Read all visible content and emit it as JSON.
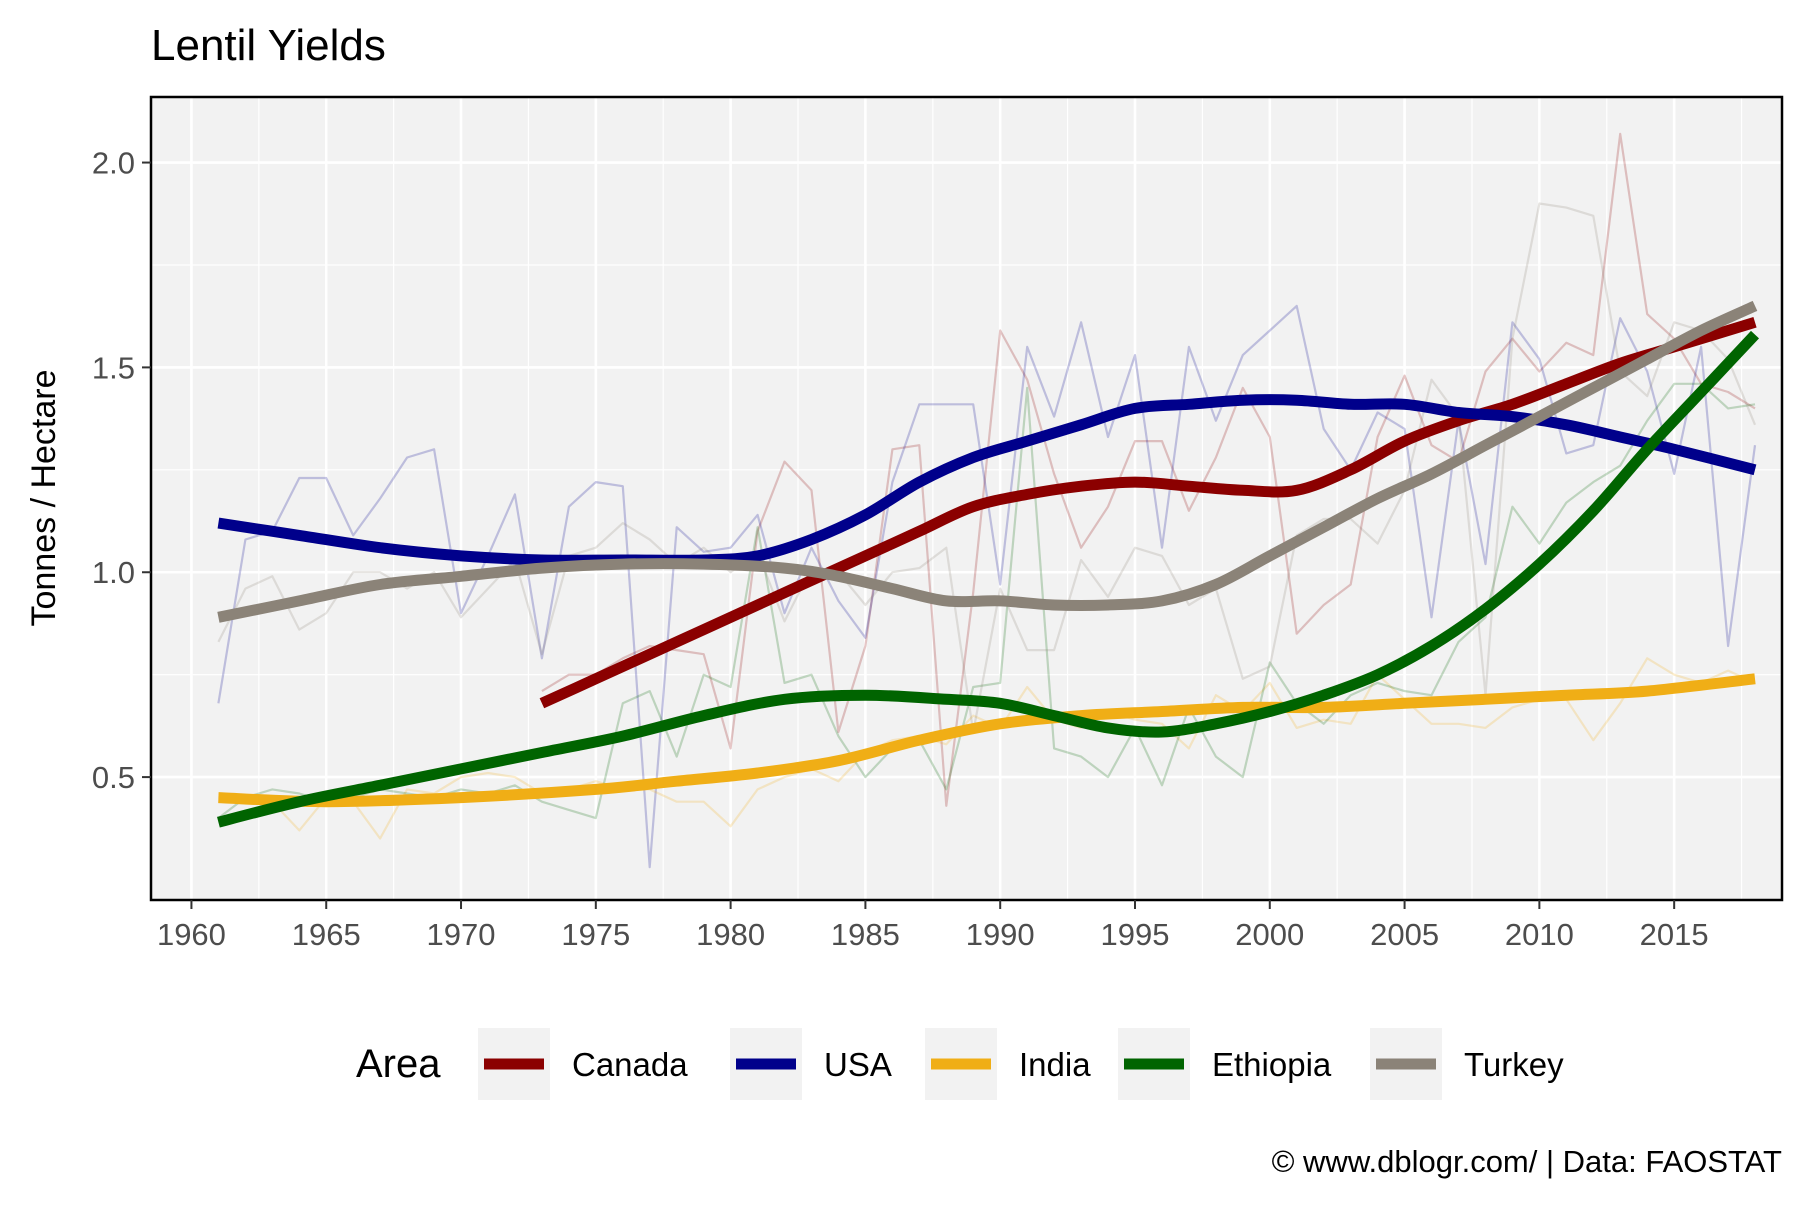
{
  "title": "Lentil Yields",
  "caption": "© www.dblogr.com/  |  Data: FAOSTAT",
  "colors": {
    "panel_bg": "#f2f2f2",
    "grid": "#ffffff",
    "axis_text": "#4d4d4d",
    "Canada": "#8b0000",
    "USA": "#00008b",
    "India": "#f0ae16",
    "Ethiopia": "#006400",
    "Turkey": "#8b8378"
  },
  "chart_data": {
    "type": "line",
    "title": "Lentil Yields",
    "xlabel": "",
    "ylabel": "Tonnes / Hectare",
    "xlim": [
      1958.5,
      2019
    ],
    "ylim": [
      0.2,
      2.16
    ],
    "x_ticks": [
      "1960",
      "1965",
      "1970",
      "1975",
      "1980",
      "1985",
      "1990",
      "1995",
      "2000",
      "2005",
      "2010",
      "2015"
    ],
    "y_ticks": [
      "0.5",
      "1.0",
      "1.5",
      "2.0"
    ],
    "grid": true,
    "legend": {
      "title": "Area",
      "position": "bottom"
    },
    "series_raw": [
      {
        "name": "Canada",
        "x": [
          1973,
          1974,
          1975,
          1976,
          1977,
          1978,
          1979,
          1980,
          1981,
          1982,
          1983,
          1984,
          1985,
          1986,
          1987,
          1988,
          1989,
          1990,
          1991,
          1992,
          1993,
          1994,
          1995,
          1996,
          1997,
          1998,
          1999,
          2000,
          2001,
          2002,
          2003,
          2004,
          2005,
          2006,
          2007,
          2008,
          2009,
          2010,
          2011,
          2012,
          2013,
          2014,
          2015,
          2016,
          2017,
          2018
        ],
        "y": [
          0.71,
          0.75,
          0.75,
          0.79,
          0.82,
          0.81,
          0.8,
          0.57,
          1.1,
          1.27,
          1.2,
          0.61,
          0.82,
          1.3,
          1.31,
          0.43,
          0.95,
          1.59,
          1.47,
          1.24,
          1.06,
          1.16,
          1.32,
          1.32,
          1.15,
          1.28,
          1.45,
          1.33,
          0.85,
          0.92,
          0.97,
          1.33,
          1.48,
          1.31,
          1.27,
          1.49,
          1.57,
          1.49,
          1.56,
          1.53,
          2.07,
          1.63,
          1.57,
          1.46,
          1.44,
          1.4
        ]
      },
      {
        "name": "USA",
        "x": [
          1961,
          1962,
          1963,
          1964,
          1965,
          1966,
          1967,
          1968,
          1969,
          1970,
          1971,
          1972,
          1973,
          1974,
          1975,
          1976,
          1977,
          1978,
          1979,
          1980,
          1981,
          1982,
          1983,
          1984,
          1985,
          1986,
          1987,
          1988,
          1989,
          1990,
          1991,
          1992,
          1993,
          1994,
          1995,
          1996,
          1997,
          1998,
          1999,
          2000,
          2001,
          2002,
          2003,
          2004,
          2005,
          2006,
          2007,
          2008,
          2009,
          2010,
          2011,
          2012,
          2013,
          2014,
          2015,
          2016,
          2017,
          2018
        ],
        "y": [
          0.68,
          1.08,
          1.1,
          1.23,
          1.23,
          1.09,
          1.18,
          1.28,
          1.3,
          0.9,
          1.04,
          1.19,
          0.79,
          1.16,
          1.22,
          1.21,
          0.28,
          1.11,
          1.05,
          1.06,
          1.14,
          0.9,
          1.06,
          0.93,
          0.84,
          1.22,
          1.41,
          1.41,
          1.41,
          0.97,
          1.55,
          1.38,
          1.61,
          1.33,
          1.53,
          1.06,
          1.55,
          1.37,
          1.53,
          1.59,
          1.65,
          1.35,
          1.25,
          1.39,
          1.35,
          0.89,
          1.37,
          1.02,
          1.61,
          1.52,
          1.29,
          1.31,
          1.62,
          1.49,
          1.24,
          1.55,
          0.82,
          1.31
        ]
      },
      {
        "name": "India",
        "x": [
          1961,
          1962,
          1963,
          1964,
          1965,
          1966,
          1967,
          1968,
          1969,
          1970,
          1971,
          1972,
          1973,
          1974,
          1975,
          1976,
          1977,
          1978,
          1979,
          1980,
          1981,
          1982,
          1983,
          1984,
          1985,
          1986,
          1987,
          1988,
          1989,
          1990,
          1991,
          1992,
          1993,
          1994,
          1995,
          1996,
          1997,
          1998,
          1999,
          2000,
          2001,
          2002,
          2003,
          2004,
          2005,
          2006,
          2007,
          2008,
          2009,
          2010,
          2011,
          2012,
          2013,
          2014,
          2015,
          2016,
          2017,
          2018
        ],
        "y": [
          0.45,
          0.45,
          0.44,
          0.37,
          0.45,
          0.44,
          0.35,
          0.47,
          0.46,
          0.5,
          0.51,
          0.5,
          0.46,
          0.47,
          0.49,
          0.47,
          0.47,
          0.44,
          0.44,
          0.38,
          0.47,
          0.5,
          0.52,
          0.49,
          0.56,
          0.59,
          0.6,
          0.58,
          0.65,
          0.62,
          0.72,
          0.64,
          0.62,
          0.66,
          0.64,
          0.63,
          0.57,
          0.7,
          0.66,
          0.73,
          0.62,
          0.64,
          0.63,
          0.75,
          0.69,
          0.63,
          0.63,
          0.62,
          0.67,
          0.69,
          0.69,
          0.59,
          0.68,
          0.79,
          0.75,
          0.73,
          0.76,
          0.73
        ]
      },
      {
        "name": "Ethiopia",
        "x": [
          1961,
          1962,
          1963,
          1964,
          1965,
          1966,
          1967,
          1968,
          1969,
          1970,
          1971,
          1972,
          1973,
          1974,
          1975,
          1976,
          1977,
          1978,
          1979,
          1980,
          1981,
          1982,
          1983,
          1984,
          1985,
          1986,
          1987,
          1988,
          1989,
          1990,
          1991,
          1992,
          1993,
          1994,
          1995,
          1996,
          1997,
          1998,
          1999,
          2000,
          2001,
          2002,
          2003,
          2004,
          2005,
          2006,
          2007,
          2008,
          2009,
          2010,
          2011,
          2012,
          2013,
          2014,
          2015,
          2016,
          2017,
          2018
        ],
        "y": [
          0.4,
          0.45,
          0.47,
          0.46,
          0.44,
          0.45,
          0.47,
          0.46,
          0.45,
          0.47,
          0.46,
          0.48,
          0.44,
          0.42,
          0.4,
          0.68,
          0.71,
          0.55,
          0.75,
          0.72,
          1.11,
          0.73,
          0.75,
          0.6,
          0.5,
          0.57,
          0.59,
          0.47,
          0.72,
          0.73,
          1.45,
          0.57,
          0.55,
          0.5,
          0.62,
          0.48,
          0.67,
          0.55,
          0.5,
          0.78,
          0.68,
          0.63,
          0.7,
          0.73,
          0.71,
          0.7,
          0.83,
          0.89,
          1.16,
          1.07,
          1.17,
          1.22,
          1.26,
          1.37,
          1.46,
          1.46,
          1.4,
          1.41
        ]
      },
      {
        "name": "Turkey",
        "x": [
          1961,
          1962,
          1963,
          1964,
          1965,
          1966,
          1967,
          1968,
          1969,
          1970,
          1971,
          1972,
          1973,
          1974,
          1975,
          1976,
          1977,
          1978,
          1979,
          1980,
          1981,
          1982,
          1983,
          1984,
          1985,
          1986,
          1987,
          1988,
          1989,
          1990,
          1991,
          1992,
          1993,
          1994,
          1995,
          1996,
          1997,
          1998,
          1999,
          2000,
          2001,
          2002,
          2003,
          2004,
          2005,
          2006,
          2007,
          2008,
          2009,
          2010,
          2011,
          2012,
          2013,
          2014,
          2015,
          2016,
          2017,
          2018
        ],
        "y": [
          0.83,
          0.96,
          0.99,
          0.86,
          0.9,
          1.0,
          1.0,
          0.96,
          1.0,
          0.89,
          0.96,
          1.03,
          0.8,
          1.04,
          1.06,
          1.12,
          1.08,
          1.02,
          1.06,
          1.0,
          1.05,
          0.88,
          1.01,
          1.0,
          0.92,
          1.0,
          1.01,
          1.06,
          0.61,
          0.96,
          0.81,
          0.81,
          1.03,
          0.94,
          1.06,
          1.04,
          0.92,
          0.96,
          0.74,
          0.77,
          1.09,
          1.13,
          1.13,
          1.07,
          1.2,
          1.47,
          1.38,
          0.7,
          1.57,
          1.9,
          1.89,
          1.87,
          1.49,
          1.43,
          1.61,
          1.59,
          1.52,
          1.36
        ]
      }
    ],
    "series": [
      {
        "name": "Canada",
        "x": [
          1973,
          1975,
          1977,
          1979,
          1981,
          1983,
          1985,
          1987,
          1989,
          1991,
          1993,
          1995,
          1997,
          1999,
          2001,
          2003,
          2005,
          2007,
          2009,
          2011,
          2013,
          2015,
          2018
        ],
        "y": [
          0.68,
          0.74,
          0.8,
          0.86,
          0.92,
          0.98,
          1.04,
          1.1,
          1.16,
          1.19,
          1.21,
          1.22,
          1.21,
          1.2,
          1.2,
          1.25,
          1.32,
          1.37,
          1.41,
          1.46,
          1.51,
          1.55,
          1.61
        ]
      },
      {
        "name": "USA",
        "x": [
          1961,
          1964,
          1967,
          1970,
          1973,
          1976,
          1979,
          1981,
          1983,
          1985,
          1987,
          1989,
          1991,
          1993,
          1995,
          1997,
          1999,
          2001,
          2003,
          2005,
          2007,
          2009,
          2011,
          2013,
          2015,
          2018
        ],
        "y": [
          1.12,
          1.09,
          1.06,
          1.04,
          1.03,
          1.03,
          1.03,
          1.04,
          1.08,
          1.14,
          1.22,
          1.28,
          1.32,
          1.36,
          1.4,
          1.41,
          1.42,
          1.42,
          1.41,
          1.41,
          1.39,
          1.38,
          1.36,
          1.33,
          1.3,
          1.25
        ]
      },
      {
        "name": "India",
        "x": [
          1961,
          1965,
          1970,
          1975,
          1978,
          1981,
          1984,
          1987,
          1990,
          1993,
          1996,
          1999,
          2002,
          2005,
          2008,
          2011,
          2014,
          2018
        ],
        "y": [
          0.45,
          0.44,
          0.45,
          0.47,
          0.49,
          0.51,
          0.54,
          0.59,
          0.63,
          0.65,
          0.66,
          0.67,
          0.67,
          0.68,
          0.69,
          0.7,
          0.71,
          0.74
        ]
      },
      {
        "name": "Ethiopia",
        "x": [
          1961,
          1964,
          1967,
          1970,
          1973,
          1976,
          1979,
          1982,
          1985,
          1988,
          1990,
          1992,
          1994,
          1996,
          1998,
          2000,
          2002,
          2004,
          2006,
          2008,
          2010,
          2012,
          2014,
          2016,
          2018
        ],
        "y": [
          0.39,
          0.44,
          0.48,
          0.52,
          0.56,
          0.6,
          0.65,
          0.69,
          0.7,
          0.69,
          0.68,
          0.65,
          0.62,
          0.61,
          0.63,
          0.66,
          0.7,
          0.75,
          0.82,
          0.91,
          1.02,
          1.15,
          1.3,
          1.44,
          1.58
        ]
      },
      {
        "name": "Turkey",
        "x": [
          1961,
          1964,
          1967,
          1970,
          1973,
          1976,
          1979,
          1982,
          1984,
          1986,
          1988,
          1990,
          1992,
          1994,
          1996,
          1998,
          2000,
          2002,
          2004,
          2006,
          2008,
          2010,
          2012,
          2014,
          2016,
          2018
        ],
        "y": [
          0.89,
          0.93,
          0.97,
          0.99,
          1.01,
          1.02,
          1.02,
          1.01,
          0.99,
          0.96,
          0.93,
          0.93,
          0.92,
          0.92,
          0.93,
          0.97,
          1.04,
          1.11,
          1.18,
          1.24,
          1.31,
          1.38,
          1.45,
          1.52,
          1.59,
          1.65
        ]
      }
    ]
  }
}
